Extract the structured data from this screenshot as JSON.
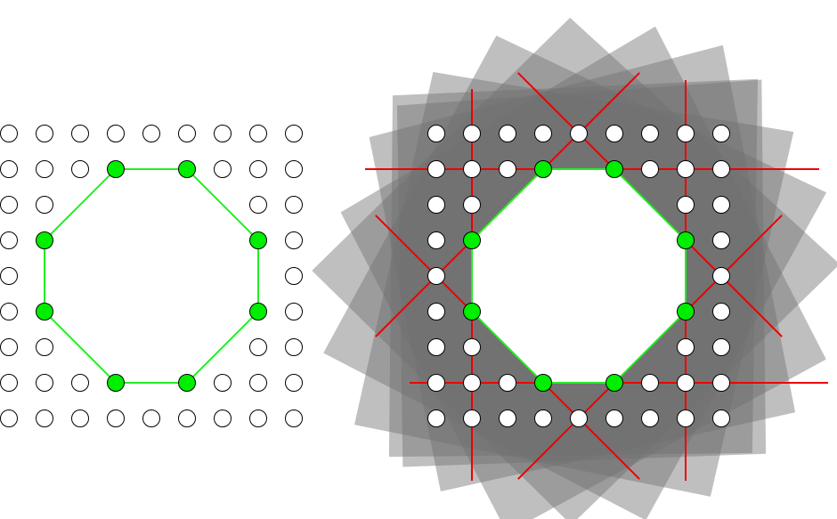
{
  "colors": {
    "background": "#ffffff",
    "dot_fill": "#ffffff",
    "dot_stroke": "#000000",
    "vertex_fill": "#00ee00",
    "polygon_stroke": "#22ee22",
    "cut_line": "#ee0000",
    "shadow_fill": "#707070",
    "shadow_opacity": 0.45
  },
  "left_panel": {
    "grid_cols": 9,
    "grid_rows": 9,
    "missing_dots": [
      [
        3,
        2
      ],
      [
        4,
        2
      ],
      [
        5,
        2
      ],
      [
        6,
        2
      ],
      [
        2,
        3
      ],
      [
        3,
        3
      ],
      [
        4,
        3
      ],
      [
        5,
        3
      ],
      [
        6,
        3
      ],
      [
        2,
        4
      ],
      [
        3,
        4
      ],
      [
        4,
        4
      ],
      [
        5,
        4
      ],
      [
        6,
        4
      ],
      [
        7,
        4
      ],
      [
        1,
        4
      ],
      [
        2,
        5
      ],
      [
        3,
        5
      ],
      [
        4,
        5
      ],
      [
        5,
        5
      ],
      [
        6,
        5
      ],
      [
        3,
        6
      ],
      [
        4,
        6
      ],
      [
        5,
        6
      ],
      [
        6,
        6
      ],
      [
        7,
        6
      ],
      [
        6,
        2
      ]
    ],
    "octagon_vertices": [
      [
        3,
        1
      ],
      [
        5,
        1
      ],
      [
        7,
        3
      ],
      [
        7,
        5
      ],
      [
        5,
        7
      ],
      [
        3,
        7
      ],
      [
        1,
        5
      ],
      [
        1,
        3
      ]
    ]
  },
  "right_panel": {
    "grid_cols": 9,
    "grid_rows": 9,
    "octagon_vertices": [
      [
        3,
        1
      ],
      [
        5,
        1
      ],
      [
        7,
        3
      ],
      [
        7,
        5
      ],
      [
        5,
        7
      ],
      [
        3,
        7
      ],
      [
        1,
        5
      ],
      [
        1,
        3
      ]
    ],
    "cut_vertices": [
      [
        4,
        0
      ],
      [
        8,
        4
      ],
      [
        4,
        8
      ],
      [
        0,
        4
      ]
    ],
    "shadow_rotations": [
      0,
      -1.5,
      12,
      -12,
      28,
      -28,
      45
    ]
  }
}
